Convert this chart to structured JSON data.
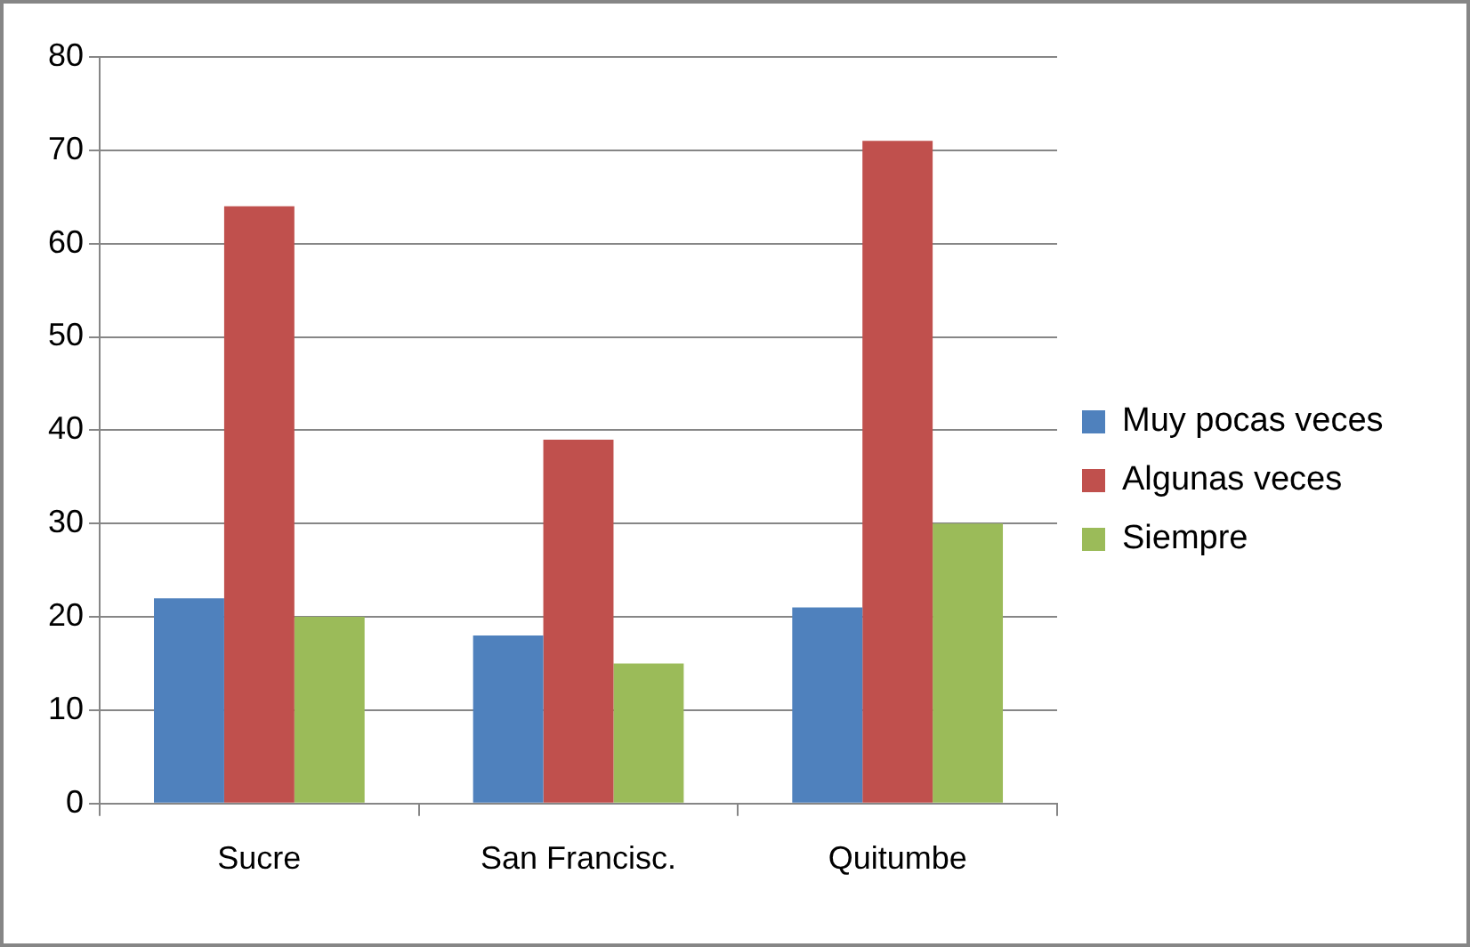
{
  "chart_data": {
    "type": "bar",
    "categories": [
      "Sucre",
      "San Francisc.",
      "Quitumbe"
    ],
    "series": [
      {
        "name": "Muy pocas veces",
        "color": "#4f81bd",
        "values": [
          22,
          18,
          21
        ]
      },
      {
        "name": "Algunas veces",
        "color": "#c0504d",
        "values": [
          64,
          39,
          71
        ]
      },
      {
        "name": "Siempre",
        "color": "#9bbb59",
        "values": [
          20,
          15,
          30
        ]
      }
    ],
    "ylim": [
      0,
      80
    ],
    "yticks": [
      0,
      10,
      20,
      30,
      40,
      50,
      60,
      70,
      80
    ],
    "grid": "y",
    "legend": "right"
  }
}
